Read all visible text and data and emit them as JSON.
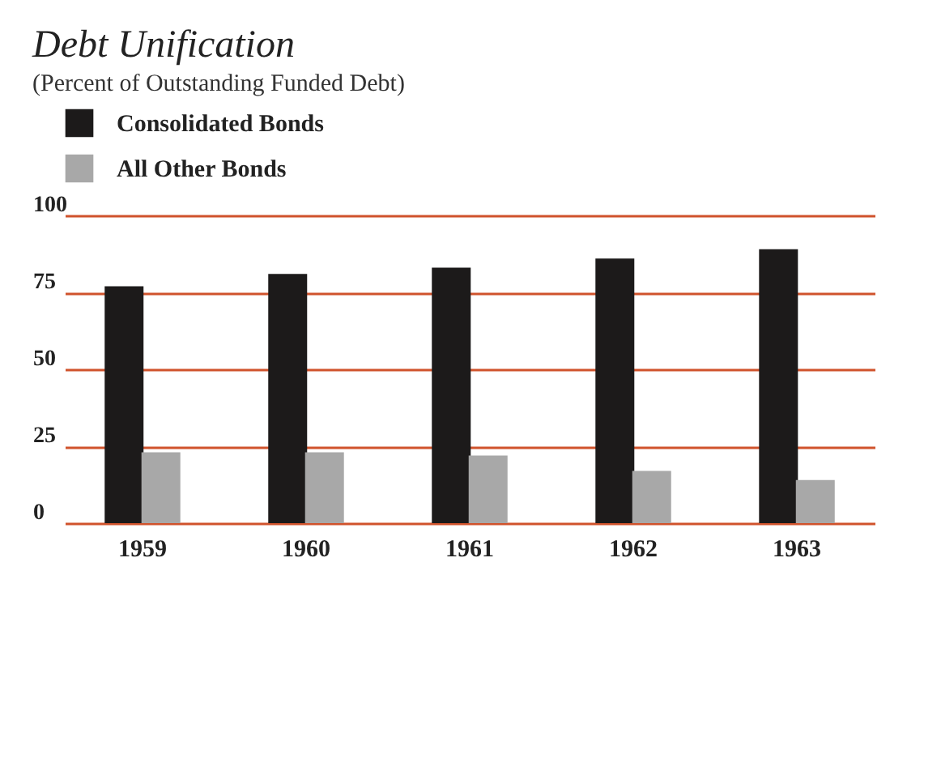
{
  "chart_data": {
    "type": "bar",
    "title": "Debt Unification",
    "subtitle": "(Percent of Outstanding Funded Debt)",
    "categories": [
      "1959",
      "1960",
      "1961",
      "1962",
      "1963"
    ],
    "series": [
      {
        "name": "Consolidated Bonds",
        "color": "#1c1a1a",
        "values": [
          77,
          81,
          83,
          86,
          89
        ]
      },
      {
        "name": "All Other Bonds",
        "color": "#a8a8a8",
        "values": [
          23,
          23,
          22,
          17,
          14
        ]
      }
    ],
    "ylim": [
      0,
      100
    ],
    "yticks": [
      0,
      25,
      50,
      75,
      100
    ],
    "grid": "y",
    "legend": "top left"
  }
}
